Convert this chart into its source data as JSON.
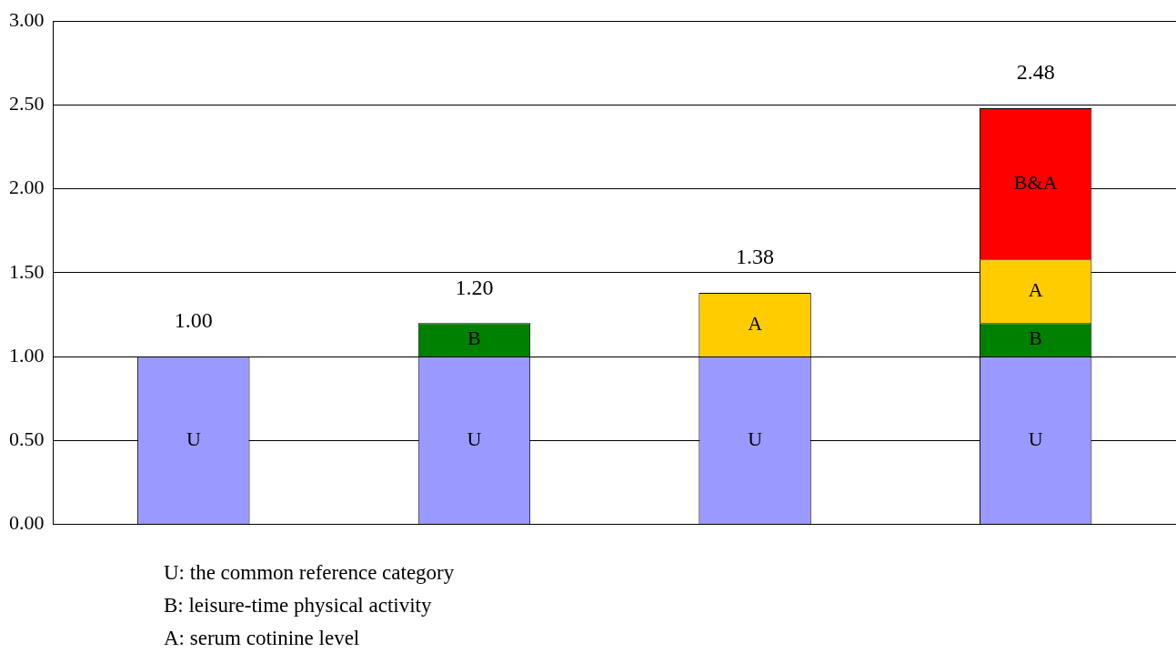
{
  "chart_data": {
    "type": "bar",
    "stacked": true,
    "categories": [
      null,
      null,
      null,
      null
    ],
    "series": [
      {
        "name": "U",
        "color": "#9999ff",
        "values": [
          1.0,
          1.0,
          1.0,
          1.0
        ]
      },
      {
        "name": "B",
        "color": "#008000",
        "values": [
          null,
          0.2,
          null,
          0.2
        ]
      },
      {
        "name": "A",
        "color": "#ffcc00",
        "values": [
          null,
          null,
          0.38,
          0.38
        ]
      },
      {
        "name": "B&A",
        "color": "#ff0000",
        "values": [
          null,
          null,
          null,
          0.9
        ]
      }
    ],
    "totals": [
      "1.00",
      "1.20",
      "1.38",
      "2.48"
    ],
    "ylim": [
      0,
      3
    ],
    "yticks": [
      {
        "value": 0,
        "label": "0.00"
      },
      {
        "value": 0.5,
        "label": "0.50"
      },
      {
        "value": 1,
        "label": "1.00"
      },
      {
        "value": 1.5,
        "label": "1.50"
      },
      {
        "value": 2,
        "label": "2.00"
      },
      {
        "value": 2.5,
        "label": "2.50"
      },
      {
        "value": 3,
        "label": "3.00"
      }
    ],
    "grid": "y",
    "legend": false,
    "annotations": [
      "U: the common reference category",
      "B: leisure-time physical activity",
      "A: serum cotinine level"
    ]
  }
}
